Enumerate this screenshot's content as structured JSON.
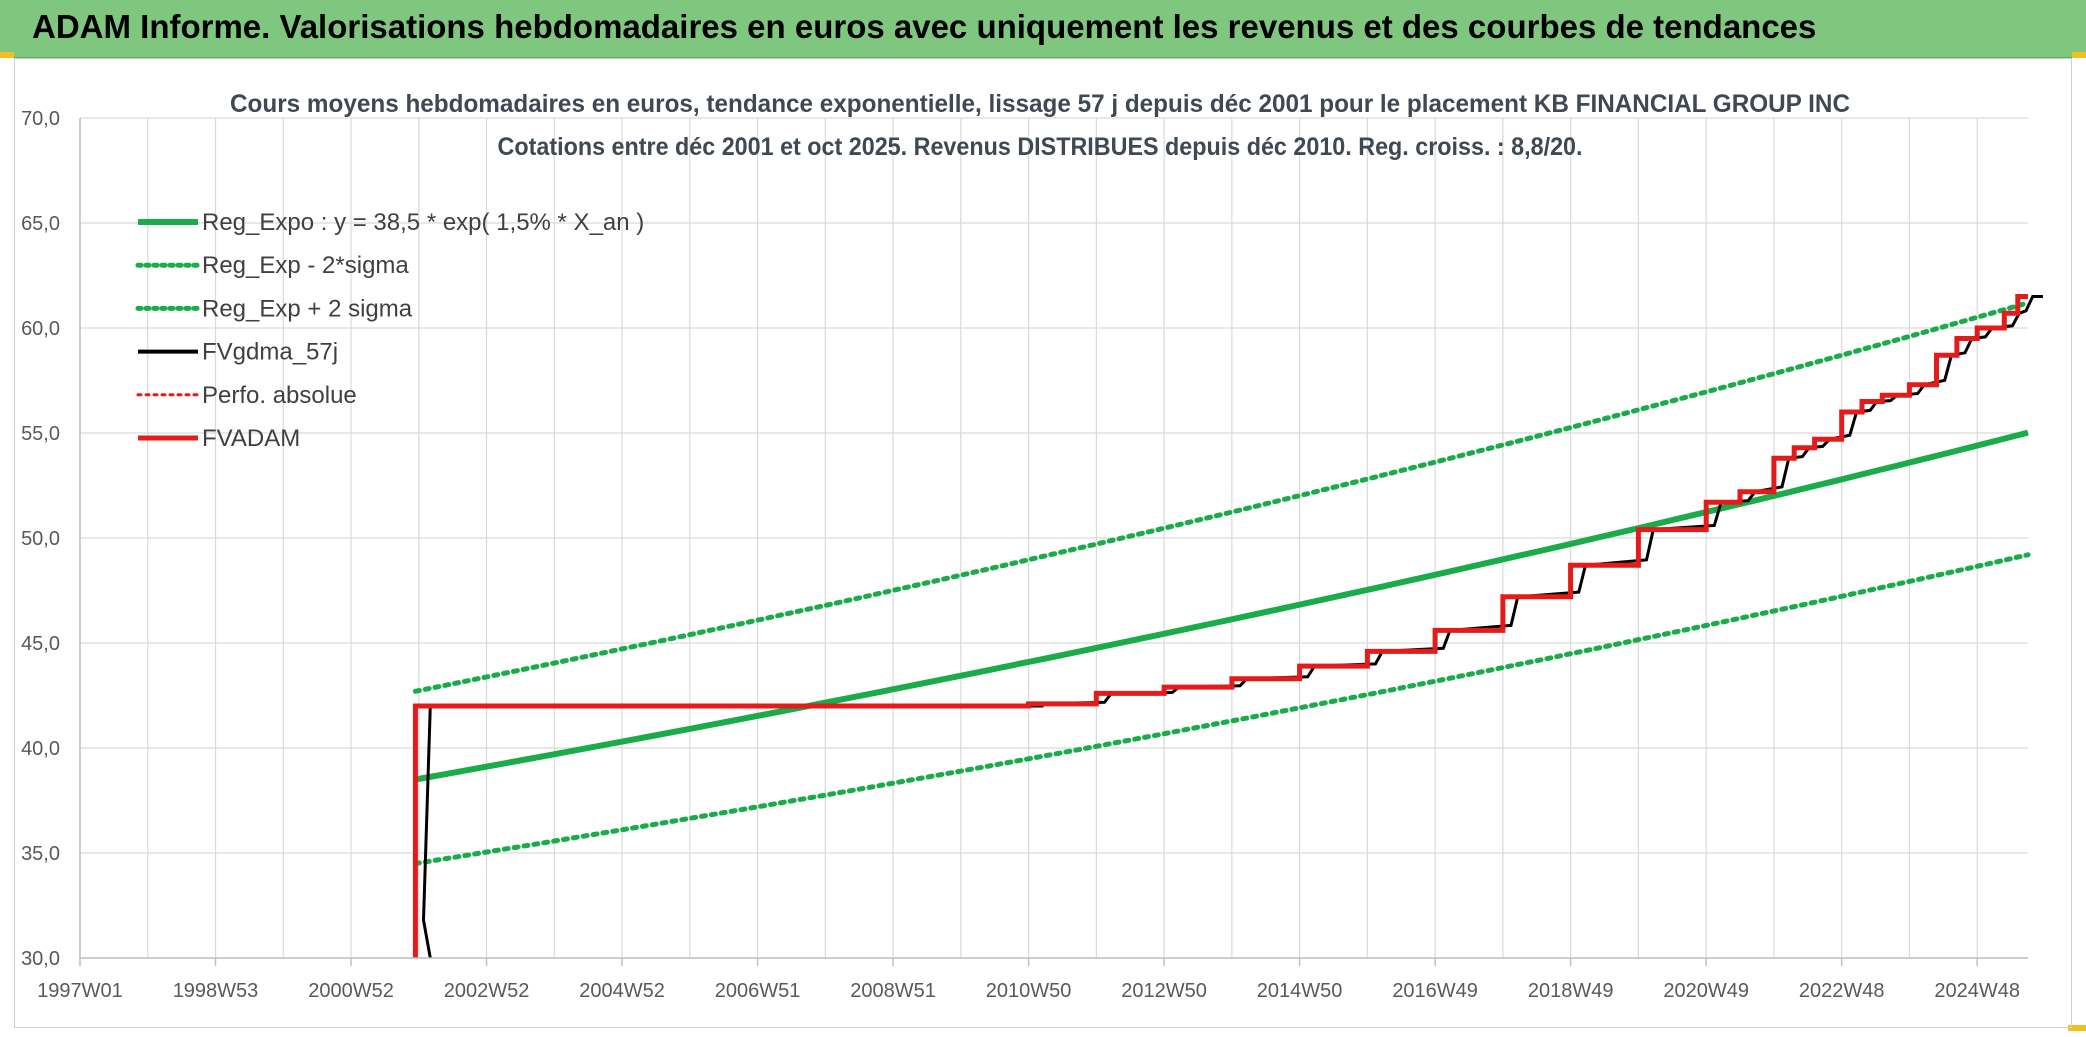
{
  "banner": {
    "title": "ADAM Informe. Valorisations hebdomadaires en euros avec uniquement les revenus et des courbes de tendances"
  },
  "colors": {
    "banner_bg": "#7fc77f",
    "accent_corner": "#f0c020",
    "reg_expo": "#1aab4a",
    "adam": "#e31b1b",
    "fv57": "#000000",
    "grid": "#d9d9d9"
  },
  "chart_data": {
    "type": "line",
    "title": "Cours moyens hebdomadaires en euros, tendance exponentielle, lissage 57 j depuis déc 2001 pour le placement KB FINANCIAL GROUP INC",
    "subtitle": "Cotations entre déc 2001 et oct 2025. Revenus DISTRIBUES depuis déc 2010. Reg. croiss. : 8,8/20.",
    "xlabel": "",
    "ylabel": "",
    "x_ticks": [
      "1997W01",
      "1998W53",
      "2000W52",
      "2002W52",
      "2004W52",
      "2006W51",
      "2008W51",
      "2010W50",
      "2012W50",
      "2014W50",
      "2016W49",
      "2018W49",
      "2020W49",
      "2022W48",
      "2024W48"
    ],
    "x_tick_years": [
      1997,
      1999,
      2001,
      2003,
      2005,
      2007,
      2009,
      2011,
      2013,
      2015,
      2017,
      2019,
      2021,
      2023,
      2025
    ],
    "xlim": [
      1997,
      2025.75
    ],
    "ylim": [
      30,
      70
    ],
    "y_ticks": [
      "30,0",
      "35,0",
      "40,0",
      "45,0",
      "50,0",
      "55,0",
      "60,0",
      "65,0",
      "70,0"
    ],
    "y_tick_values": [
      30,
      35,
      40,
      45,
      50,
      55,
      60,
      65,
      70
    ],
    "grid": true,
    "legend_position": "top-left",
    "legend": [
      {
        "name": "Reg_Expo : y = 38,5 * exp( 1,5% *  X_an )",
        "color": "#1aab4a",
        "style": "solid",
        "width": 6
      },
      {
        "name": "Reg_Exp - 2*sigma",
        "color": "#1aab4a",
        "style": "dotted",
        "width": 5
      },
      {
        "name": "Reg_Exp + 2 sigma",
        "color": "#1aab4a",
        "style": "dotted",
        "width": 5
      },
      {
        "name": "FVgdma_57j",
        "color": "#000000",
        "style": "solid",
        "width": 4
      },
      {
        "name": "Perfo. absolue",
        "color": "#e31b1b",
        "style": "dotted",
        "width": 3
      },
      {
        "name": "FVADAM",
        "color": "#e31b1b",
        "style": "solid",
        "width": 5
      }
    ],
    "series": [
      {
        "name": "Reg_Expo : y = 38,5 * exp( 1,5% *  X_an )",
        "x": [
          2001.95,
          2025.75
        ],
        "start_value": 38.5,
        "rate": 0.015
      },
      {
        "name": "Reg_Exp - 2*sigma",
        "x": [
          2001.95,
          2025.75
        ],
        "y": [
          34.5,
          49.2
        ]
      },
      {
        "name": "Reg_Exp + 2 sigma",
        "x": [
          2001.95,
          2025.75
        ],
        "y": [
          42.7,
          61.2
        ]
      },
      {
        "name": "FVADAM",
        "steps": [
          [
            2001.95,
            30.0
          ],
          [
            2001.95,
            42.0
          ],
          [
            2011.0,
            42.0
          ],
          [
            2011.0,
            42.1
          ],
          [
            2012.0,
            42.6
          ],
          [
            2013.0,
            42.9
          ],
          [
            2014.0,
            43.3
          ],
          [
            2015.0,
            43.9
          ],
          [
            2016.0,
            44.6
          ],
          [
            2017.0,
            45.6
          ],
          [
            2018.0,
            47.2
          ],
          [
            2019.0,
            48.7
          ],
          [
            2020.0,
            50.4
          ],
          [
            2021.0,
            51.7
          ],
          [
            2021.5,
            52.2
          ],
          [
            2022.0,
            53.8
          ],
          [
            2022.3,
            54.3
          ],
          [
            2022.6,
            54.7
          ],
          [
            2023.0,
            56.0
          ],
          [
            2023.3,
            56.5
          ],
          [
            2023.6,
            56.8
          ],
          [
            2024.0,
            57.3
          ],
          [
            2024.4,
            58.7
          ],
          [
            2024.7,
            59.5
          ],
          [
            2025.0,
            60.0
          ],
          [
            2025.4,
            60.7
          ],
          [
            2025.6,
            61.5
          ],
          [
            2025.75,
            61.5
          ]
        ]
      }
    ]
  }
}
